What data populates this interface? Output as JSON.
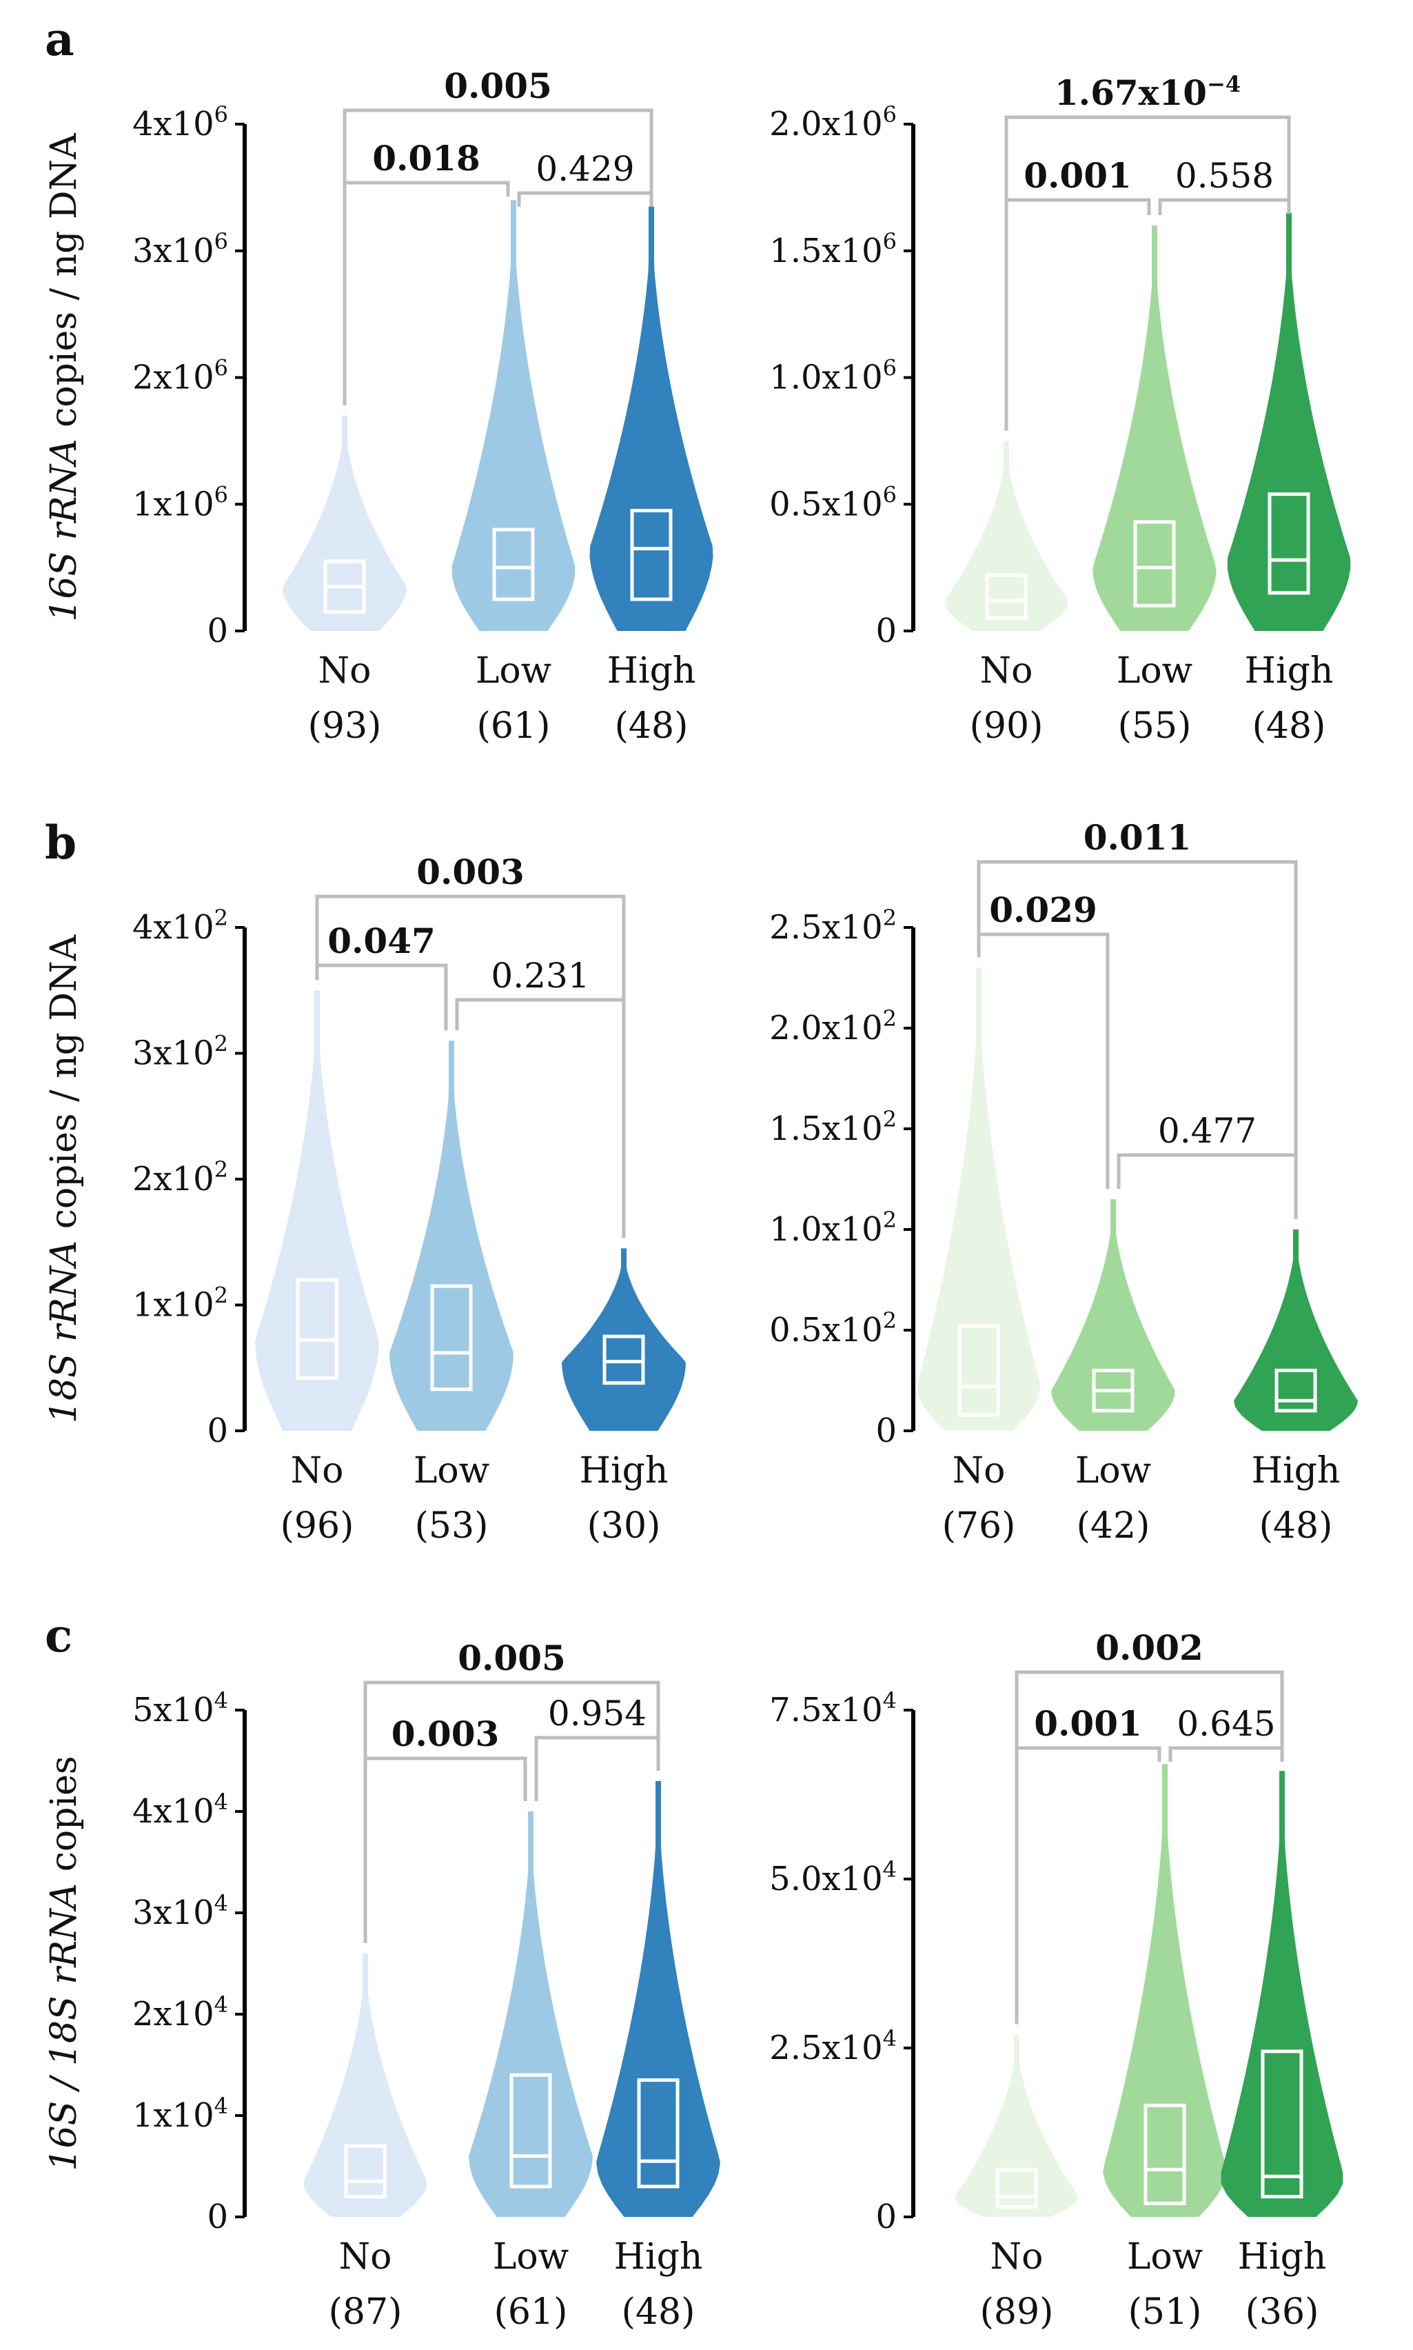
{
  "figure": {
    "rows": [
      {
        "letter": "a",
        "ylabel": {
          "italic": "16S rRNA",
          "rest": " copies / ng DNA"
        },
        "charts": [
          {
            "type": "violin",
            "palette": "blue",
            "ylim": [
              0,
              4000000
            ],
            "yticks": [
              {
                "value": 0,
                "label": "0"
              },
              {
                "value": 1000000,
                "label": "1x10",
                "sup": "6"
              },
              {
                "value": 2000000,
                "label": "2x10",
                "sup": "6"
              },
              {
                "value": 3000000,
                "label": "3x10",
                "sup": "6"
              },
              {
                "value": 4000000,
                "label": "4x10",
                "sup": "6"
              }
            ],
            "categories": [
              "No",
              "Low",
              "High"
            ],
            "n": [
              "(93)",
              "(61)",
              "(48)"
            ],
            "colors": [
              "#dde9f6",
              "#9ec9e4",
              "#3182bd"
            ],
            "stats": [
              {
                "median": 350000,
                "q1": 150000,
                "q3": 550000,
                "max": 1700000
              },
              {
                "median": 500000,
                "q1": 250000,
                "q3": 800000,
                "max": 3400000
              },
              {
                "median": 650000,
                "q1": 250000,
                "q3": 950000,
                "max": 3350000
              }
            ],
            "comparisons": [
              {
                "from": 0,
                "to": 2,
                "p": "0.005",
                "sig": true
              },
              {
                "from": 0,
                "to": 1,
                "p": "0.018",
                "sig": true
              },
              {
                "from": 1,
                "to": 2,
                "p": "0.429",
                "sig": false
              }
            ]
          },
          {
            "type": "violin",
            "palette": "green",
            "ylim": [
              0,
              2000000
            ],
            "yticks": [
              {
                "value": 0,
                "label": "0"
              },
              {
                "value": 500000,
                "label": "0.5x10",
                "sup": "6"
              },
              {
                "value": 1000000,
                "label": "1.0x10",
                "sup": "6"
              },
              {
                "value": 1500000,
                "label": "1.5x10",
                "sup": "6"
              },
              {
                "value": 2000000,
                "label": "2.0x10",
                "sup": "6"
              }
            ],
            "categories": [
              "No",
              "Low",
              "High"
            ],
            "n": [
              "(90)",
              "(55)",
              "(48)"
            ],
            "colors": [
              "#e8f5e4",
              "#a1d99b",
              "#31a354"
            ],
            "stats": [
              {
                "median": 120000,
                "q1": 50000,
                "q3": 220000,
                "max": 750000
              },
              {
                "median": 250000,
                "q1": 100000,
                "q3": 430000,
                "max": 1600000
              },
              {
                "median": 280000,
                "q1": 150000,
                "q3": 540000,
                "max": 1650000
              }
            ],
            "comparisons": [
              {
                "from": 0,
                "to": 2,
                "p": "1.67x10",
                "sup": "−4",
                "sig": true
              },
              {
                "from": 0,
                "to": 1,
                "p": "0.001",
                "sig": true
              },
              {
                "from": 1,
                "to": 2,
                "p": "0.558",
                "sig": false
              }
            ]
          }
        ]
      },
      {
        "letter": "b",
        "ylabel": {
          "italic": "18S rRNA",
          "rest": " copies / ng DNA"
        },
        "charts": [
          {
            "type": "violin",
            "palette": "blue",
            "ylim": [
              0,
              400
            ],
            "yticks": [
              {
                "value": 0,
                "label": "0"
              },
              {
                "value": 100,
                "label": "1x10",
                "sup": "2"
              },
              {
                "value": 200,
                "label": "2x10",
                "sup": "2"
              },
              {
                "value": 300,
                "label": "3x10",
                "sup": "2"
              },
              {
                "value": 400,
                "label": "4x10",
                "sup": "2"
              }
            ],
            "categories": [
              "No",
              "Low",
              "High"
            ],
            "n": [
              "(96)",
              "(53)",
              "(30)"
            ],
            "colors": [
              "#dde9f6",
              "#9ec9e4",
              "#3182bd"
            ],
            "stats": [
              {
                "median": 72,
                "q1": 42,
                "q3": 120,
                "max": 350
              },
              {
                "median": 62,
                "q1": 33,
                "q3": 115,
                "max": 310
              },
              {
                "median": 55,
                "q1": 38,
                "q3": 75,
                "max": 145
              }
            ],
            "comparisons": [
              {
                "from": 0,
                "to": 2,
                "p": "0.003",
                "sig": true
              },
              {
                "from": 0,
                "to": 1,
                "p": "0.047",
                "sig": true
              },
              {
                "from": 1,
                "to": 2,
                "p": "0.231",
                "sig": false
              }
            ]
          },
          {
            "type": "violin",
            "palette": "green",
            "ylim": [
              0,
              250
            ],
            "yticks": [
              {
                "value": 0,
                "label": "0"
              },
              {
                "value": 50,
                "label": "0.5x10",
                "sup": "2"
              },
              {
                "value": 100,
                "label": "1.0x10",
                "sup": "2"
              },
              {
                "value": 150,
                "label": "1.5x10",
                "sup": "2"
              },
              {
                "value": 200,
                "label": "2.0x10",
                "sup": "2"
              },
              {
                "value": 250,
                "label": "2.5x10",
                "sup": "2"
              }
            ],
            "categories": [
              "No",
              "Low",
              "High"
            ],
            "n": [
              "(76)",
              "(42)",
              "(48)"
            ],
            "colors": [
              "#e8f5e4",
              "#a1d99b",
              "#31a354"
            ],
            "stats": [
              {
                "median": 22,
                "q1": 8,
                "q3": 52,
                "max": 230
              },
              {
                "median": 20,
                "q1": 10,
                "q3": 30,
                "max": 115
              },
              {
                "median": 15,
                "q1": 10,
                "q3": 30,
                "max": 100
              }
            ],
            "comparisons": [
              {
                "from": 0,
                "to": 2,
                "p": "0.011",
                "sig": true
              },
              {
                "from": 0,
                "to": 1,
                "p": "0.029",
                "sig": true
              },
              {
                "from": 1,
                "to": 2,
                "p": "0.477",
                "sig": false
              }
            ]
          }
        ]
      },
      {
        "letter": "c",
        "ylabel": {
          "italic": "16S / 18S rRNA",
          "rest": " copies"
        },
        "charts": [
          {
            "type": "violin",
            "palette": "blue",
            "ylim": [
              0,
              50000
            ],
            "yticks": [
              {
                "value": 0,
                "label": "0"
              },
              {
                "value": 10000,
                "label": "1x10",
                "sup": "4"
              },
              {
                "value": 20000,
                "label": "2x10",
                "sup": "4"
              },
              {
                "value": 30000,
                "label": "3x10",
                "sup": "4"
              },
              {
                "value": 40000,
                "label": "4x10",
                "sup": "4"
              },
              {
                "value": 50000,
                "label": "5x10",
                "sup": "4"
              }
            ],
            "categories": [
              "No",
              "Low",
              "High"
            ],
            "n": [
              "(87)",
              "(61)",
              "(48)"
            ],
            "colors": [
              "#dde9f6",
              "#9ec9e4",
              "#3182bd"
            ],
            "stats": [
              {
                "median": 3500,
                "q1": 2000,
                "q3": 7000,
                "max": 26000
              },
              {
                "median": 6000,
                "q1": 3000,
                "q3": 14000,
                "max": 40000
              },
              {
                "median": 5500,
                "q1": 3000,
                "q3": 13500,
                "max": 43000
              }
            ],
            "comparisons": [
              {
                "from": 0,
                "to": 2,
                "p": "0.005",
                "sig": true
              },
              {
                "from": 0,
                "to": 1,
                "p": "0.003",
                "sig": true
              },
              {
                "from": 1,
                "to": 2,
                "p": "0.954",
                "sig": false
              }
            ]
          },
          {
            "type": "violin",
            "palette": "green",
            "ylim": [
              0,
              75000
            ],
            "yticks": [
              {
                "value": 0,
                "label": "0"
              },
              {
                "value": 25000,
                "label": "2.5x10",
                "sup": "4"
              },
              {
                "value": 50000,
                "label": "5.0x10",
                "sup": "4"
              },
              {
                "value": 75000,
                "label": "7.5x10",
                "sup": "4"
              }
            ],
            "categories": [
              "No",
              "Low",
              "High"
            ],
            "n": [
              "(89)",
              "(51)",
              "(36)"
            ],
            "colors": [
              "#e8f5e4",
              "#a1d99b",
              "#31a354"
            ],
            "stats": [
              {
                "median": 3000,
                "q1": 1500,
                "q3": 7000,
                "max": 27000
              },
              {
                "median": 7000,
                "q1": 2000,
                "q3": 16500,
                "max": 67000
              },
              {
                "median": 6000,
                "q1": 3000,
                "q3": 24500,
                "max": 66000
              }
            ],
            "comparisons": [
              {
                "from": 0,
                "to": 2,
                "p": "0.002",
                "sig": true
              },
              {
                "from": 0,
                "to": 1,
                "p": "0.001",
                "sig": true
              },
              {
                "from": 1,
                "to": 2,
                "p": "0.645",
                "sig": false
              }
            ]
          }
        ]
      }
    ]
  }
}
